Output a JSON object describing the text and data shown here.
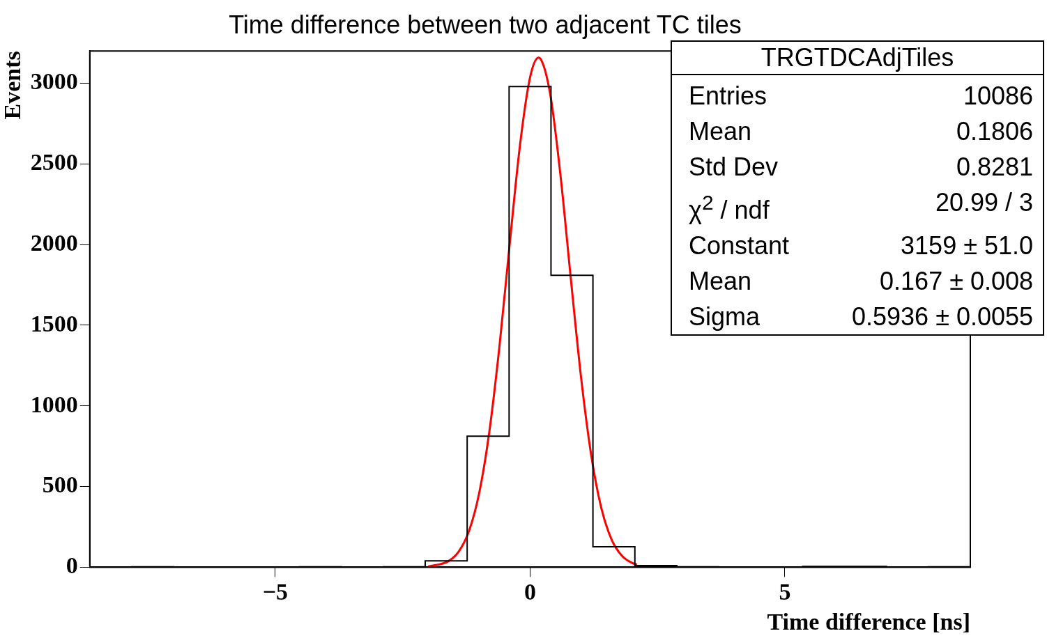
{
  "chart_data": {
    "type": "histogram",
    "title": "Time difference between two adjacent TC tiles",
    "xlabel": "Time difference [ns]",
    "ylabel": "Events",
    "bins": [
      -8.64,
      -7.817,
      -6.994,
      -6.171,
      -5.349,
      -4.526,
      -3.703,
      -2.88,
      -2.057,
      -1.234,
      -0.411,
      0.411,
      1.234,
      2.057,
      2.88,
      3.703,
      4.526,
      5.349,
      6.171,
      6.994,
      7.817,
      8.64
    ],
    "values": [
      0,
      3,
      0,
      0,
      0,
      3,
      0,
      3,
      40,
      812,
      2980,
      1810,
      127,
      10,
      3,
      0,
      0,
      5,
      5,
      0,
      3
    ],
    "color": "#000000",
    "series": [
      {
        "type": "line",
        "color": "#ff0000",
        "x": [
          -2.0,
          -1.6,
          -1.4,
          -1.2,
          -1.0,
          -0.8,
          -0.6,
          -0.4,
          -0.2,
          0,
          0.167,
          0.2,
          0.4,
          0.6,
          0.8,
          1.0,
          1.2,
          1.4,
          1.6,
          1.8,
          2.0,
          2.1
        ],
        "values": [
          4,
          38,
          97,
          223,
          457,
          838,
          1371,
          2002,
          2610,
          3036,
          3159,
          3154,
          2925,
          2421,
          1789,
          1180,
          695,
          365,
          172,
          72,
          27,
          16
        ]
      }
    ],
    "xlim": [
      -8.64,
      8.64
    ],
    "xticks": [
      -5,
      0,
      5
    ],
    "ylim": [
      0,
      3200
    ],
    "yticks": [
      0,
      500,
      1000,
      1500,
      2000,
      2500,
      3000
    ],
    "grid": false,
    "legend": false,
    "annotations": [
      "TRGTDCAdjTiles",
      "Entries",
      "10086",
      "Mean",
      "0.1806",
      "Std Dev",
      "0.8281",
      "χ$^{2}$ / ndf",
      "20.99 / 3",
      "Constant",
      "3159 ± 51.0",
      "Mean",
      "0.167 ± 0.008",
      "Sigma",
      "0.5936 ± 0.0055"
    ]
  }
}
